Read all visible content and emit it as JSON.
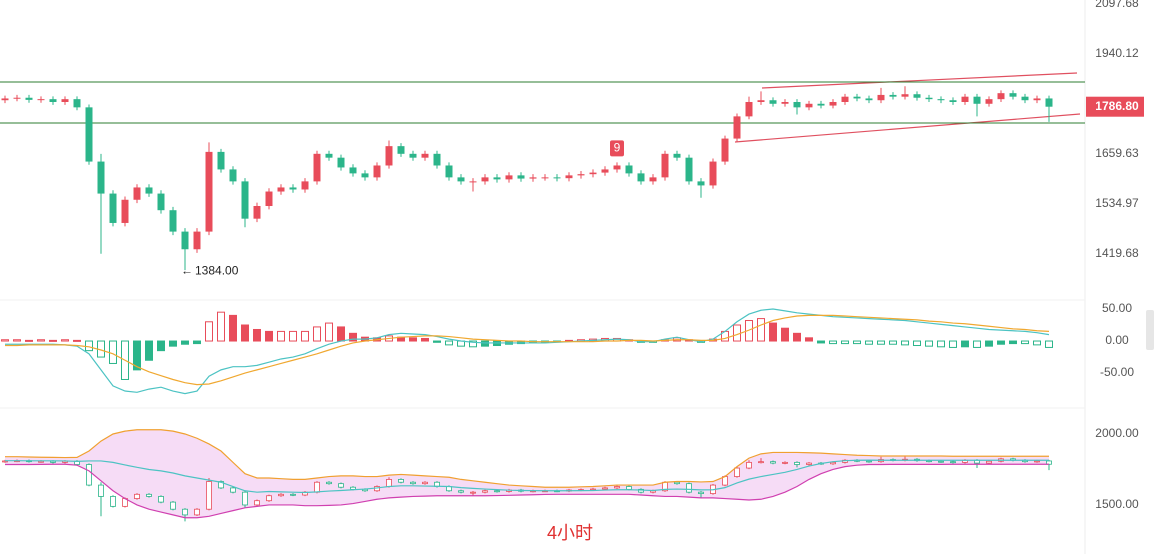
{
  "chart_data": [
    {
      "type": "candlestick",
      "log": true,
      "ylim": [
        1321,
        2111
      ],
      "yticks": [
        2097.68,
        1940.12,
        1659.63,
        1534.97,
        1419.68
      ],
      "last_price": {
        "value": 1786.8,
        "label": "1786.80"
      },
      "up_color": "#e84c5a",
      "down_color": "#2bb58a",
      "hlines": [
        {
          "value": 1857,
          "color": "#2e7d32"
        },
        {
          "value": 1742,
          "color": "#2e7d32"
        }
      ],
      "annotations": [
        {
          "index": 15,
          "value": 1384,
          "label": "1384.00"
        },
        {
          "index": 51,
          "label": "9"
        }
      ],
      "open": [
        1805,
        1810,
        1812,
        1806,
        1808,
        1800,
        1808,
        1785,
        1640,
        1560,
        1490,
        1545,
        1575,
        1560,
        1520,
        1470,
        1430,
        1470,
        1665,
        1620,
        1590,
        1500,
        1530,
        1565,
        1575,
        1570,
        1590,
        1660,
        1650,
        1625,
        1610,
        1600,
        1630,
        1680,
        1660,
        1650,
        1660,
        1630,
        1600,
        1590,
        1590,
        1600,
        1595,
        1605,
        1597,
        1600,
        1600,
        1598,
        1605,
        1608,
        1612,
        1620,
        1630,
        1610,
        1590,
        1600,
        1660,
        1650,
        1590,
        1580,
        1640,
        1700,
        1760,
        1800,
        1805,
        1795,
        1800,
        1785,
        1795,
        1790,
        1800,
        1815,
        1810,
        1805,
        1820,
        1815,
        1822,
        1812,
        1808,
        1805,
        1800,
        1815,
        1795,
        1808,
        1825,
        1815,
        1805,
        1810
      ],
      "high": [
        1818,
        1820,
        1820,
        1816,
        1816,
        1816,
        1816,
        1793,
        1660,
        1568,
        1553,
        1583,
        1583,
        1568,
        1528,
        1478,
        1478,
        1690,
        1673,
        1628,
        1598,
        1538,
        1573,
        1583,
        1583,
        1598,
        1668,
        1668,
        1658,
        1633,
        1618,
        1638,
        1695,
        1688,
        1668,
        1668,
        1668,
        1638,
        1608,
        1598,
        1608,
        1608,
        1613,
        1613,
        1608,
        1608,
        1608,
        1613,
        1616,
        1620,
        1628,
        1638,
        1638,
        1618,
        1608,
        1668,
        1668,
        1658,
        1598,
        1648,
        1708,
        1768,
        1815,
        1830,
        1813,
        1808,
        1808,
        1803,
        1803,
        1808,
        1823,
        1823,
        1818,
        1840,
        1828,
        1845,
        1830,
        1820,
        1816,
        1813,
        1823,
        1823,
        1816,
        1833,
        1833,
        1823,
        1818,
        1818
      ],
      "low": [
        1797,
        1802,
        1798,
        1798,
        1792,
        1792,
        1777,
        1632,
        1420,
        1482,
        1482,
        1537,
        1552,
        1512,
        1462,
        1384,
        1422,
        1462,
        1612,
        1582,
        1480,
        1492,
        1522,
        1557,
        1562,
        1562,
        1582,
        1642,
        1617,
        1602,
        1592,
        1592,
        1622,
        1652,
        1642,
        1642,
        1622,
        1592,
        1582,
        1565,
        1582,
        1587,
        1587,
        1589,
        1589,
        1592,
        1590,
        1590,
        1597,
        1600,
        1604,
        1612,
        1602,
        1582,
        1582,
        1592,
        1642,
        1582,
        1550,
        1572,
        1632,
        1692,
        1752,
        1792,
        1787,
        1787,
        1765,
        1777,
        1782,
        1782,
        1792,
        1802,
        1797,
        1797,
        1807,
        1807,
        1804,
        1800,
        1797,
        1792,
        1792,
        1760,
        1787,
        1800,
        1807,
        1797,
        1797,
        1745
      ],
      "close": [
        1810,
        1812,
        1806,
        1808,
        1800,
        1808,
        1785,
        1640,
        1560,
        1490,
        1545,
        1575,
        1560,
        1520,
        1470,
        1430,
        1470,
        1665,
        1620,
        1590,
        1500,
        1530,
        1565,
        1575,
        1570,
        1590,
        1660,
        1650,
        1625,
        1610,
        1600,
        1630,
        1680,
        1660,
        1650,
        1660,
        1630,
        1600,
        1590,
        1590,
        1600,
        1595,
        1605,
        1597,
        1600,
        1600,
        1598,
        1605,
        1608,
        1612,
        1620,
        1630,
        1610,
        1590,
        1600,
        1660,
        1650,
        1590,
        1580,
        1640,
        1700,
        1760,
        1800,
        1805,
        1795,
        1800,
        1785,
        1795,
        1790,
        1800,
        1815,
        1810,
        1805,
        1820,
        1815,
        1822,
        1812,
        1808,
        1805,
        1800,
        1815,
        1795,
        1808,
        1825,
        1815,
        1805,
        1810,
        1786.8
      ]
    },
    {
      "type": "macd",
      "ylim": [
        -92,
        64
      ],
      "yticks": [
        {
          "value": 50,
          "label": "50.00"
        },
        {
          "value": 0,
          "label": "0.00"
        },
        {
          "value": -50,
          "label": "-50.00"
        }
      ],
      "up_color": "#e84c5a",
      "down_color": "#2bb58a",
      "values": [
        2,
        2,
        1,
        2,
        1,
        2,
        1,
        -15,
        -25,
        -35,
        -60,
        -45,
        -30,
        -15,
        -8,
        -5,
        -4,
        30,
        45,
        40,
        25,
        18,
        15,
        15,
        15,
        15,
        22,
        28,
        22,
        12,
        6,
        5,
        8,
        6,
        5,
        4,
        -2,
        -6,
        -8,
        -9,
        -8,
        -7,
        -5,
        -4,
        -3,
        -2,
        -1,
        1,
        2,
        3,
        4,
        4,
        2,
        -2,
        -2,
        2,
        5,
        2,
        -2,
        3,
        15,
        25,
        32,
        35,
        28,
        20,
        12,
        5,
        -3,
        -4,
        -4,
        -4,
        -5,
        -5,
        -5,
        -6,
        -7,
        -8,
        -9,
        -10,
        -9,
        -10,
        -8,
        -5,
        -4,
        -4,
        -6,
        -10
      ],
      "series": [
        {
          "color": "#4cc3c3",
          "values": [
            -5,
            -5,
            -5,
            -5,
            -5,
            -6,
            -8,
            -20,
            -45,
            -70,
            -78,
            -80,
            -75,
            -72,
            -78,
            -82,
            -78,
            -55,
            -45,
            -40,
            -40,
            -38,
            -33,
            -28,
            -25,
            -20,
            -12,
            -5,
            0,
            3,
            3,
            5,
            10,
            12,
            11,
            10,
            7,
            3,
            0,
            -2,
            -3,
            -3,
            -3,
            -3,
            -3,
            -3,
            -2,
            -1,
            0,
            1,
            2,
            3,
            2,
            -1,
            -1,
            3,
            6,
            2,
            -1,
            3,
            15,
            30,
            42,
            48,
            50,
            47,
            44,
            42,
            40,
            38,
            37,
            36,
            35,
            34,
            33,
            32,
            30,
            28,
            26,
            24,
            22,
            20,
            18,
            17,
            16,
            15,
            13,
            10
          ]
        },
        {
          "color": "#f0a830",
          "values": [
            -7,
            -7,
            -6,
            -6,
            -6,
            -6,
            -7,
            -9,
            -14,
            -20,
            -30,
            -40,
            -48,
            -54,
            -60,
            -65,
            -68,
            -67,
            -62,
            -56,
            -50,
            -45,
            -40,
            -35,
            -30,
            -25,
            -20,
            -14,
            -8,
            -3,
            0,
            2,
            4,
            6,
            7,
            8,
            8,
            7,
            5,
            3,
            2,
            1,
            0,
            0,
            -1,
            -1,
            -1,
            -1,
            -1,
            -1,
            0,
            0,
            1,
            1,
            0,
            1,
            2,
            2,
            1,
            1,
            4,
            10,
            17,
            25,
            32,
            36,
            39,
            40,
            40,
            40,
            39,
            38,
            37,
            36,
            35,
            34,
            33,
            31,
            30,
            28,
            27,
            25,
            23,
            21,
            19,
            18,
            16,
            15
          ]
        }
      ]
    },
    {
      "type": "bollinger",
      "ylim": [
        1394,
        2169
      ],
      "yticks": [
        {
          "value": 2000,
          "label": "2000.00"
        },
        {
          "value": 1500,
          "label": "1500.00"
        }
      ],
      "band_fill": "#f6dcf6",
      "series": [
        {
          "color": "#f0a030",
          "values": [
            1840,
            1840,
            1838,
            1836,
            1835,
            1834,
            1835,
            1880,
            1950,
            2000,
            2020,
            2030,
            2030,
            2030,
            2020,
            2000,
            1970,
            1930,
            1880,
            1800,
            1720,
            1690,
            1690,
            1685,
            1680,
            1680,
            1690,
            1700,
            1705,
            1705,
            1700,
            1700,
            1710,
            1715,
            1710,
            1705,
            1700,
            1695,
            1680,
            1670,
            1660,
            1650,
            1640,
            1635,
            1630,
            1625,
            1625,
            1625,
            1628,
            1630,
            1635,
            1640,
            1640,
            1640,
            1640,
            1660,
            1665,
            1665,
            1662,
            1665,
            1700,
            1770,
            1830,
            1860,
            1870,
            1870,
            1870,
            1868,
            1865,
            1860,
            1855,
            1850,
            1848,
            1845,
            1845,
            1845,
            1845,
            1845,
            1845,
            1843,
            1843,
            1843,
            1843,
            1843,
            1843,
            1843,
            1843,
            1843
          ]
        },
        {
          "color": "#4cc3c3",
          "values": [
            1812,
            1812,
            1811,
            1811,
            1811,
            1810,
            1807,
            1810,
            1810,
            1800,
            1782,
            1765,
            1750,
            1740,
            1725,
            1705,
            1690,
            1675,
            1660,
            1630,
            1600,
            1590,
            1595,
            1592,
            1590,
            1588,
            1592,
            1598,
            1602,
            1607,
            1612,
            1620,
            1630,
            1635,
            1635,
            1633,
            1632,
            1630,
            1622,
            1617,
            1612,
            1608,
            1604,
            1602,
            1601,
            1600,
            1600,
            1600,
            1601,
            1602,
            1605,
            1607,
            1607,
            1605,
            1602,
            1610,
            1612,
            1610,
            1606,
            1607,
            1622,
            1655,
            1682,
            1700,
            1715,
            1730,
            1750,
            1774,
            1792,
            1805,
            1812,
            1815,
            1816,
            1815,
            1815,
            1815,
            1815,
            1815,
            1815,
            1815,
            1815,
            1815,
            1815,
            1815,
            1815,
            1815,
            1815,
            1815
          ]
        },
        {
          "color": "#d040b0",
          "values": [
            1785,
            1785,
            1785,
            1786,
            1787,
            1787,
            1780,
            1740,
            1670,
            1600,
            1545,
            1500,
            1470,
            1450,
            1430,
            1410,
            1410,
            1420,
            1440,
            1460,
            1480,
            1490,
            1500,
            1500,
            1500,
            1495,
            1495,
            1497,
            1500,
            1510,
            1525,
            1540,
            1550,
            1555,
            1560,
            1562,
            1565,
            1565,
            1565,
            1565,
            1565,
            1566,
            1568,
            1570,
            1572,
            1574,
            1575,
            1575,
            1575,
            1575,
            1575,
            1575,
            1575,
            1570,
            1565,
            1560,
            1560,
            1555,
            1550,
            1550,
            1545,
            1540,
            1535,
            1540,
            1560,
            1590,
            1630,
            1680,
            1720,
            1750,
            1770,
            1780,
            1785,
            1785,
            1786,
            1786,
            1786,
            1786,
            1786,
            1787,
            1787,
            1787,
            1787,
            1787,
            1787,
            1787,
            1787,
            1787
          ]
        }
      ]
    }
  ],
  "caption": "4小时"
}
